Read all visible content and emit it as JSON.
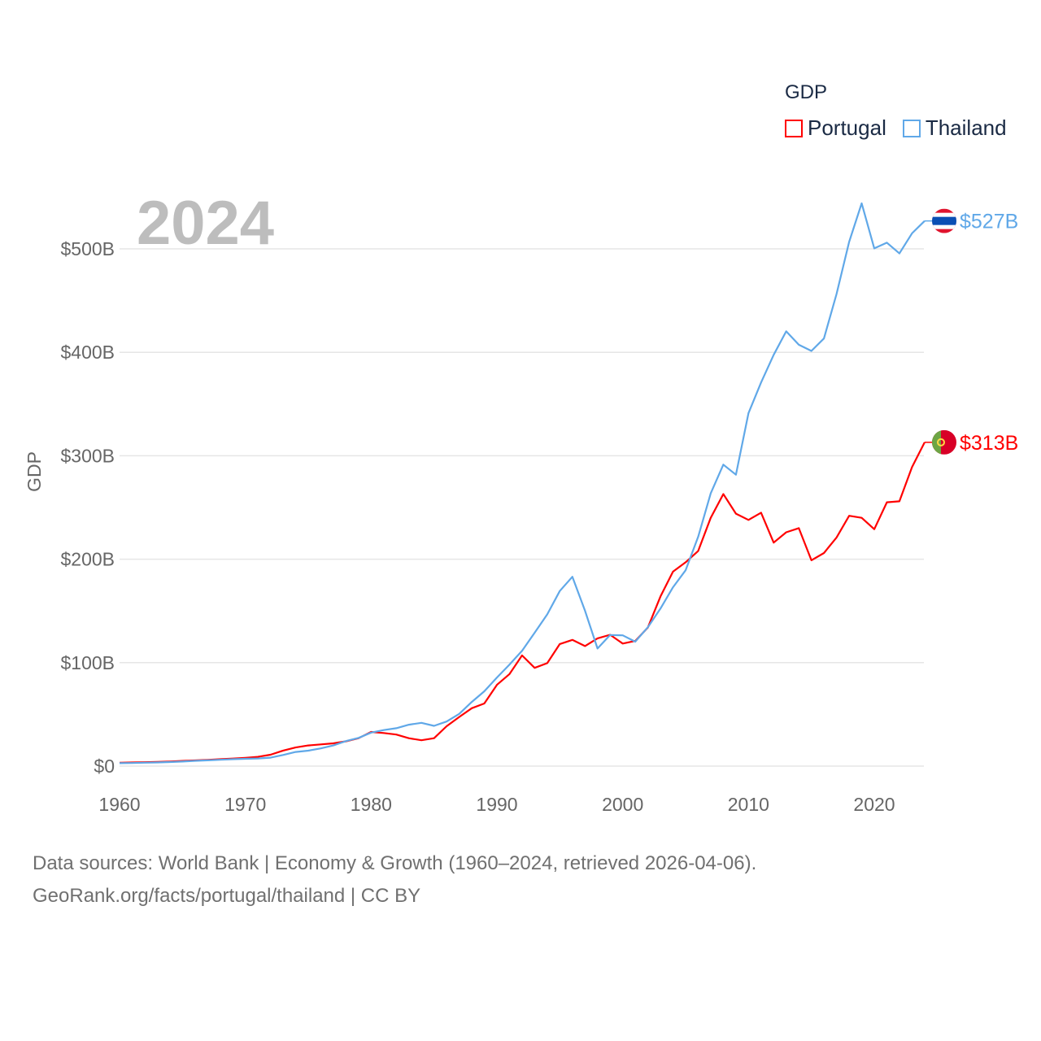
{
  "chart_data": {
    "type": "line",
    "title": "2024",
    "xlabel": "",
    "ylabel": "GDP",
    "xlim": [
      1960,
      2024
    ],
    "ylim": [
      0,
      560
    ],
    "grid": true,
    "x_ticks": [
      1960,
      1970,
      1980,
      1990,
      2000,
      2010,
      2020
    ],
    "x_tick_labels": [
      "1960",
      "1970",
      "1980",
      "1990",
      "2000",
      "2010",
      "2020"
    ],
    "y_ticks": [
      0,
      100,
      200,
      300,
      400,
      500
    ],
    "y_tick_labels": [
      "$0",
      "$100B",
      "$200B",
      "$300B",
      "$400B",
      "$500B"
    ],
    "legend": {
      "title": "GDP",
      "placement": "top-right"
    },
    "x_start": 1960,
    "series": [
      {
        "name": "Portugal",
        "color": "#ff0000",
        "end_label": "$313B",
        "flag": "portugal-flag",
        "values": [
          3.3,
          3.5,
          3.8,
          4.1,
          4.5,
          5.0,
          5.5,
          6.0,
          6.7,
          7.3,
          8.0,
          9.0,
          11.0,
          15.0,
          18.0,
          20.0,
          21.0,
          22.0,
          24.0,
          27.0,
          33.0,
          32.0,
          30.5,
          27.0,
          25.0,
          27.0,
          38.5,
          47.5,
          56.0,
          60.5,
          78.5,
          89.0,
          107.0,
          95.0,
          99.5,
          118.0,
          122.0,
          116.0,
          123.5,
          127.0,
          118.5,
          121.0,
          134.0,
          164.0,
          188.0,
          197.0,
          208.0,
          240.0,
          263.0,
          244.0,
          238.0,
          245.0,
          216.0,
          226.0,
          230.0,
          199.0,
          206.0,
          221.0,
          242.0,
          240.0,
          229.0,
          255.0,
          256.0,
          289.0,
          313.0
        ]
      },
      {
        "name": "Thailand",
        "color": "#60a8e8",
        "end_label": "$527B",
        "flag": "thailand-flag",
        "values": [
          2.8,
          3.0,
          3.3,
          3.5,
          3.9,
          4.4,
          5.1,
          5.6,
          6.1,
          6.7,
          7.1,
          7.4,
          8.2,
          10.8,
          13.7,
          14.9,
          17.1,
          20.0,
          24.2,
          27.3,
          32.4,
          34.8,
          36.6,
          40.0,
          41.8,
          38.9,
          43.1,
          50.5,
          62.0,
          72.3,
          85.6,
          98.2,
          111.5,
          128.9,
          146.7,
          169.3,
          183.0,
          150.2,
          113.7,
          126.7,
          126.4,
          120.3,
          134.3,
          152.3,
          172.9,
          189.3,
          221.8,
          263.7,
          291.4,
          281.7,
          341.1,
          370.8,
          397.6,
          420.3,
          407.3,
          401.3,
          413.4,
          456.4,
          506.8,
          544.0,
          500.5,
          506.0,
          495.6,
          515.0,
          527.0
        ]
      }
    ]
  },
  "footer": {
    "line1": "Data sources: World Bank | Economy & Growth (1960–2024, retrieved 2026-04-06).",
    "line2": "GeoRank.org/facts/portugal/thailand | CC BY"
  }
}
